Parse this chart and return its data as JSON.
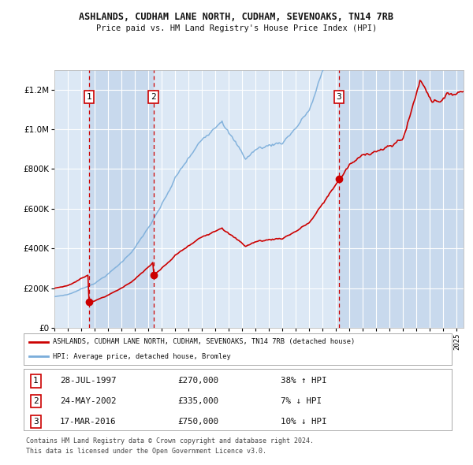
{
  "title1": "ASHLANDS, CUDHAM LANE NORTH, CUDHAM, SEVENOAKS, TN14 7RB",
  "title2": "Price paid vs. HM Land Registry's House Price Index (HPI)",
  "legend_red": "ASHLANDS, CUDHAM LANE NORTH, CUDHAM, SEVENOAKS, TN14 7RB (detached house)",
  "legend_blue": "HPI: Average price, detached house, Bromley",
  "footnote1": "Contains HM Land Registry data © Crown copyright and database right 2024.",
  "footnote2": "This data is licensed under the Open Government Licence v3.0.",
  "transactions": [
    {
      "num": 1,
      "date": "28-JUL-1997",
      "price": 270000,
      "pct": "38%",
      "dir": "↑",
      "year": 1997.57
    },
    {
      "num": 2,
      "date": "24-MAY-2002",
      "price": 335000,
      "pct": "7%",
      "dir": "↓",
      "year": 2002.38
    },
    {
      "num": 3,
      "date": "17-MAR-2016",
      "price": 750000,
      "pct": "10%",
      "dir": "↓",
      "year": 2016.21
    }
  ],
  "ylim": [
    0,
    1300000
  ],
  "xlim_start": 1995.0,
  "xlim_end": 2025.5,
  "fig_bg": "#ffffff",
  "plot_bg": "#dce8f5",
  "grid_color": "#ffffff",
  "red_color": "#cc0000",
  "blue_color": "#7aadda",
  "shade_alt": "#c8d9ed",
  "shade_main": "#dce8f5"
}
